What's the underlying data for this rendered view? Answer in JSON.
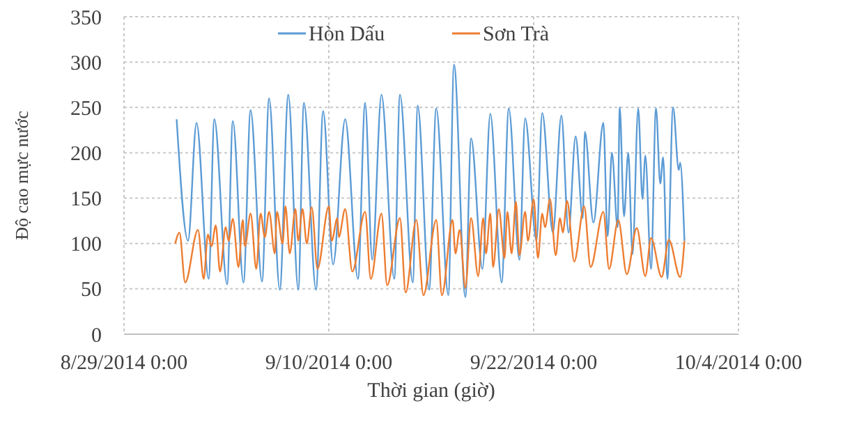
{
  "chart_data": {
    "type": "line",
    "xlabel": "Thời gian (giờ)",
    "ylabel": "Độ cao mực nước",
    "xlim": [
      "2014-08-29",
      "2014-10-04"
    ],
    "xticks": [
      {
        "value": "2014-08-29",
        "label": "8/29/2014 0:00"
      },
      {
        "value": "2014-09-10",
        "label": "9/10/2014 0:00"
      },
      {
        "value": "2014-09-22",
        "label": "9/22/2014 0:00"
      },
      {
        "value": "2014-10-04",
        "label": "10/4/2014 0:00"
      }
    ],
    "ylim": [
      0,
      350
    ],
    "yticks": [
      0,
      50,
      100,
      150,
      200,
      250,
      300,
      350
    ],
    "grid": true,
    "legend": "top",
    "line_style": "solid",
    "marker": "none",
    "series": [
      {
        "name": "Hòn Dấu",
        "color": "#5b9bd5",
        "x": [
          "2014-09-01T02:00",
          "2014-09-01T18:00",
          "2014-09-02T06:00",
          "2014-09-02T23:00",
          "2014-09-03T07:00",
          "2014-09-04T01:00",
          "2014-09-04T09:00",
          "2014-09-05T00:00",
          "2014-09-05T10:00",
          "2014-09-06T02:00",
          "2014-09-06T12:00",
          "2014-09-07T03:00",
          "2014-09-07T15:00",
          "2014-09-08T05:00",
          "2014-09-08T13:00",
          "2014-09-09T06:00",
          "2014-09-09T16:00",
          "2014-09-10T06:00",
          "2014-09-10T23:00",
          "2014-09-11T17:00",
          "2014-09-12T03:00",
          "2014-09-12T13:00",
          "2014-09-13T02:00",
          "2014-09-13T20:00",
          "2014-09-14T04:00",
          "2014-09-14T22:00",
          "2014-09-15T05:00",
          "2014-09-15T21:00",
          "2014-09-16T07:00",
          "2014-09-17T00:00",
          "2014-09-17T08:00",
          "2014-09-18T00:00",
          "2014-09-18T08:00",
          "2014-09-19T00:00",
          "2014-09-19T11:00",
          "2014-09-20T03:00",
          "2014-09-20T13:00",
          "2014-09-21T04:00",
          "2014-09-21T12:00",
          "2014-09-22T04:00",
          "2014-09-22T12:00",
          "2014-09-23T03:00",
          "2014-09-23T15:00",
          "2014-09-24T01:00",
          "2014-09-24T11:00",
          "2014-09-24T21:00",
          "2014-09-25T00:00",
          "2014-09-25T12:00",
          "2014-09-26T02:00",
          "2014-09-26T08:00",
          "2014-09-26T14:00",
          "2014-09-26T22:00",
          "2014-09-27T01:00",
          "2014-09-27T07:00",
          "2014-09-27T13:00",
          "2014-09-27T19:00",
          "2014-09-28T03:00",
          "2014-09-28T09:00",
          "2014-09-28T13:00",
          "2014-09-28T21:00",
          "2014-09-29T04:00",
          "2014-09-29T10:00",
          "2014-09-29T14:00",
          "2014-09-29T20:00",
          "2014-09-30T04:00",
          "2014-09-30T12:00",
          "2014-09-30T14:00",
          "2014-09-30T20:00"
        ],
        "values": [
          237,
          103,
          233,
          61,
          237,
          55,
          235,
          57,
          247,
          58,
          260,
          49,
          264,
          49,
          255,
          49,
          246,
          77,
          237,
          61,
          255,
          82,
          264,
          61,
          264,
          57,
          252,
          49,
          249,
          43,
          297,
          41,
          216,
          72,
          243,
          57,
          249,
          82,
          238,
          103,
          244,
          112,
          241,
          112,
          218,
          128,
          223,
          123,
          233,
          108,
          200,
          118,
          250,
          130,
          200,
          88,
          249,
          149,
          197,
          72,
          249,
          166,
          195,
          61,
          250,
          181,
          189,
          103
        ]
      },
      {
        "name": "Sơn Trà",
        "color": "#ed7d31",
        "x": [
          "2014-09-01T00:00",
          "2014-09-01T06:00",
          "2014-09-01T14:00",
          "2014-09-02T08:00",
          "2014-09-02T16:00",
          "2014-09-02T22:00",
          "2014-09-03T03:00",
          "2014-09-03T09:00",
          "2014-09-03T15:00",
          "2014-09-03T23:00",
          "2014-09-04T03:00",
          "2014-09-04T09:00",
          "2014-09-04T17:00",
          "2014-09-04T23:00",
          "2014-09-05T02:00",
          "2014-09-05T10:00",
          "2014-09-05T18:00",
          "2014-09-06T00:00",
          "2014-09-06T06:00",
          "2014-09-06T12:00",
          "2014-09-06T20:00",
          "2014-09-06T23:00",
          "2014-09-07T07:00",
          "2014-09-07T11:00",
          "2014-09-07T17:00",
          "2014-09-08T01:00",
          "2014-09-08T05:00",
          "2014-09-08T11:00",
          "2014-09-08T17:00",
          "2014-09-09T00:00",
          "2014-09-09T08:00",
          "2014-09-10T00:00",
          "2014-09-10T04:00",
          "2014-09-10T12:00",
          "2014-09-10T14:00",
          "2014-09-10T23:00",
          "2014-09-11T09:00",
          "2014-09-12T03:00",
          "2014-09-12T11:00",
          "2014-09-13T02:00",
          "2014-09-13T10:00",
          "2014-09-14T04:00",
          "2014-09-14T12:00",
          "2014-09-15T03:00",
          "2014-09-15T13:00",
          "2014-09-16T07:00",
          "2014-09-16T15:00",
          "2014-09-17T06:00",
          "2014-09-17T10:00",
          "2014-09-17T16:00",
          "2014-09-18T00:00",
          "2014-09-18T08:00",
          "2014-09-18T18:00",
          "2014-09-19T01:00",
          "2014-09-19T05:00",
          "2014-09-19T11:00",
          "2014-09-19T15:00",
          "2014-09-19T23:00",
          "2014-09-20T07:00",
          "2014-09-20T11:00",
          "2014-09-20T17:00",
          "2014-09-20T23:00",
          "2014-09-21T04:00",
          "2014-09-21T12:00",
          "2014-09-21T16:00",
          "2014-09-22T00:00",
          "2014-09-22T06:00",
          "2014-09-22T12:00",
          "2014-09-22T16:00",
          "2014-09-22T23:00",
          "2014-09-23T07:00",
          "2014-09-23T13:00",
          "2014-09-23T17:00",
          "2014-09-23T23:00",
          "2014-09-24T09:00",
          "2014-09-24T23:00",
          "2014-09-25T08:00",
          "2014-09-26T02:00",
          "2014-09-26T10:00",
          "2014-09-26T23:00",
          "2014-09-27T11:00",
          "2014-09-28T01:00",
          "2014-09-28T13:00",
          "2014-09-28T21:00",
          "2014-09-29T12:00",
          "2014-09-29T22:00",
          "2014-09-30T14:00",
          "2014-09-30T20:00"
        ],
        "values": [
          100,
          112,
          57,
          115,
          61,
          110,
          97,
          120,
          69,
          118,
          103,
          127,
          74,
          126,
          97,
          133,
          72,
          133,
          107,
          135,
          89,
          135,
          100,
          141,
          89,
          138,
          103,
          138,
          100,
          140,
          72,
          141,
          103,
          128,
          107,
          138,
          69,
          135,
          61,
          133,
          54,
          128,
          46,
          126,
          43,
          126,
          43,
          126,
          89,
          115,
          51,
          128,
          64,
          128,
          89,
          133,
          74,
          138,
          84,
          135,
          89,
          146,
          87,
          135,
          103,
          149,
          84,
          133,
          118,
          149,
          87,
          128,
          112,
          147,
          80,
          141,
          74,
          135,
          72,
          126,
          66,
          117,
          64,
          106,
          63,
          104,
          63,
          103
        ]
      }
    ]
  }
}
